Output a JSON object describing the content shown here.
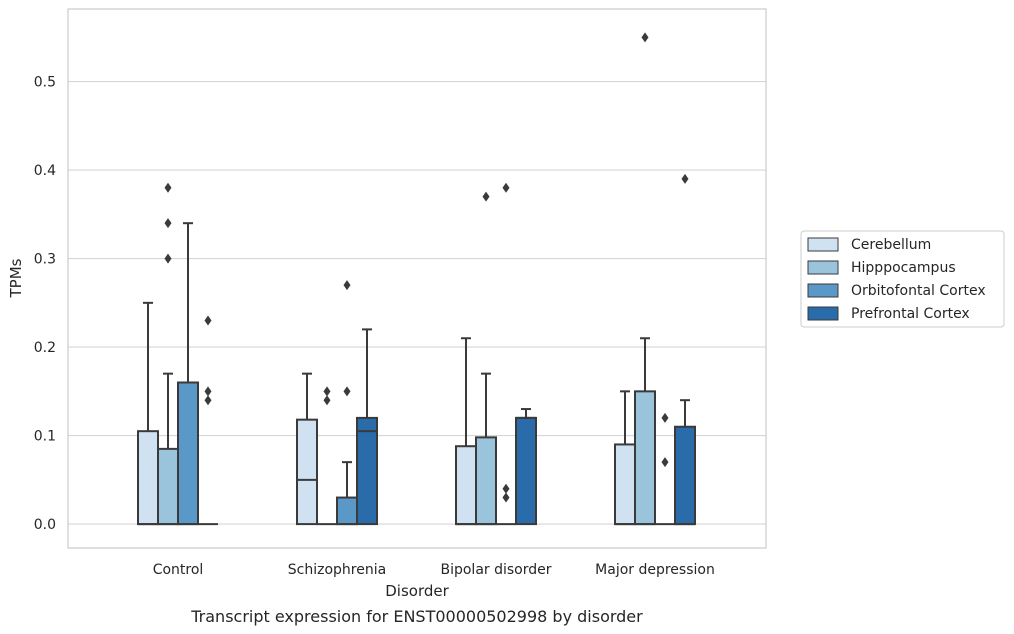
{
  "chart_data": {
    "type": "box",
    "caption": "Transcript expression for ENST00000502998 by disorder",
    "xlabel": "Disorder",
    "ylabel": "TPMs",
    "ylim": [
      -0.027,
      0.582
    ],
    "yticks": [
      "0.0",
      "0.1",
      "0.2",
      "0.3",
      "0.4",
      "0.5"
    ],
    "ytick_values": [
      0.0,
      0.1,
      0.2,
      0.3,
      0.4,
      0.5
    ],
    "grid": "horizontal",
    "legend_position": "right",
    "categories": [
      "Control",
      "Schizophrenia",
      "Bipolar disorder",
      "Major depression"
    ],
    "series": [
      {
        "name": "Cerebellum",
        "color": "#d0e1f1",
        "boxes": [
          {
            "min": 0.0,
            "q1": 0.0,
            "median": 0.0,
            "q3": 0.105,
            "max": 0.25,
            "outliers": []
          },
          {
            "min": 0.0,
            "q1": 0.0,
            "median": 0.05,
            "q3": 0.118,
            "max": 0.17,
            "outliers": []
          },
          {
            "min": 0.0,
            "q1": 0.0,
            "median": 0.0,
            "q3": 0.088,
            "max": 0.21,
            "outliers": []
          },
          {
            "min": 0.0,
            "q1": 0.0,
            "median": 0.0,
            "q3": 0.09,
            "max": 0.15,
            "outliers": []
          }
        ]
      },
      {
        "name": "Hipppocampus",
        "color": "#9ac3dc",
        "boxes": [
          {
            "min": 0.0,
            "q1": 0.0,
            "median": 0.0,
            "q3": 0.085,
            "max": 0.17,
            "outliers": [
              0.3,
              0.34,
              0.38
            ]
          },
          {
            "min": 0.0,
            "q1": 0.0,
            "median": 0.0,
            "q3": 0.0,
            "max": 0.0,
            "outliers": [
              0.14,
              0.15
            ]
          },
          {
            "min": 0.0,
            "q1": 0.0,
            "median": 0.0,
            "q3": 0.098,
            "max": 0.17,
            "outliers": [
              0.37
            ]
          },
          {
            "min": 0.0,
            "q1": 0.0,
            "median": 0.0,
            "q3": 0.15,
            "max": 0.21,
            "outliers": [
              0.55
            ]
          }
        ]
      },
      {
        "name": "Orbitofontal Cortex",
        "color": "#5a98c7",
        "boxes": [
          {
            "min": 0.0,
            "q1": 0.0,
            "median": 0.0,
            "q3": 0.16,
            "max": 0.34,
            "outliers": []
          },
          {
            "min": 0.0,
            "q1": 0.0,
            "median": 0.0,
            "q3": 0.03,
            "max": 0.07,
            "outliers": [
              0.15,
              0.27
            ]
          },
          {
            "min": 0.0,
            "q1": 0.0,
            "median": 0.0,
            "q3": 0.0,
            "max": 0.0,
            "outliers": [
              0.03,
              0.04,
              0.38
            ]
          },
          {
            "min": 0.0,
            "q1": 0.0,
            "median": 0.0,
            "q3": 0.0,
            "max": 0.0,
            "outliers": [
              0.07,
              0.12
            ]
          }
        ]
      },
      {
        "name": "Prefrontal Cortex",
        "color": "#2a6ba9",
        "boxes": [
          {
            "min": 0.0,
            "q1": 0.0,
            "median": 0.0,
            "q3": 0.0,
            "max": 0.0,
            "outliers": [
              0.14,
              0.15,
              0.23
            ]
          },
          {
            "min": 0.0,
            "q1": 0.0,
            "median": 0.105,
            "q3": 0.12,
            "max": 0.22,
            "outliers": []
          },
          {
            "min": 0.0,
            "q1": 0.0,
            "median": 0.12,
            "q3": 0.12,
            "max": 0.13,
            "outliers": []
          },
          {
            "min": 0.0,
            "q1": 0.0,
            "median": 0.0,
            "q3": 0.11,
            "max": 0.14,
            "outliers": [
              0.39
            ]
          }
        ]
      }
    ]
  }
}
